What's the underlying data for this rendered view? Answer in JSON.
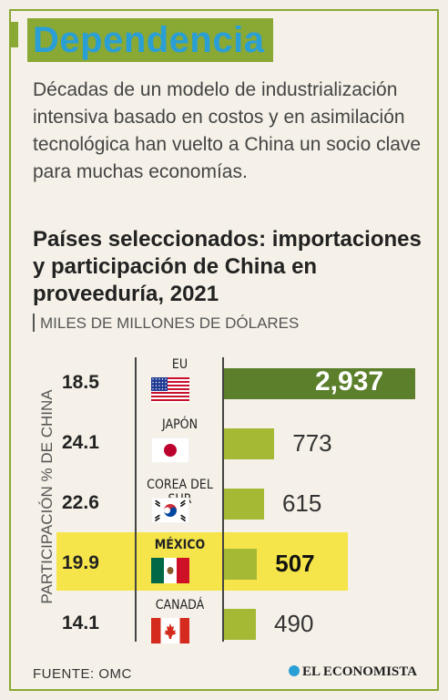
{
  "header": {
    "title": "Dependencia",
    "intro": "Décadas de un modelo de industrialización intensiva basado en costos y en asimilación tecnológica han vuelto a China un socio clave para muchas economías.",
    "subtitle": "Países seleccionados: importaciones y participación de China en proveeduría, 2021",
    "units": "MILES DE MILLONES DE DÓLARES"
  },
  "colors": {
    "accent_green": "#8aa834",
    "dark_green": "#5b7f2b",
    "bar_green": "#a6b934",
    "highlight": "#f6e54a",
    "title_blue": "#2a9fd6"
  },
  "chart_data": {
    "type": "bar",
    "orientation": "horizontal",
    "title": "Países seleccionados: importaciones y participación de China en proveeduría, 2021",
    "ylabel": "PARTICIPACIÓN % DE CHINA",
    "units": "MILES DE MILLONES DE DÓLARES",
    "categories": [
      "EU",
      "JAPÓN",
      "COREA DEL SUR",
      "MÉXICO",
      "CANADÁ"
    ],
    "series": [
      {
        "values": [
          2937,
          773,
          615,
          507,
          490
        ]
      }
    ],
    "value_labels": [
      "2,937",
      "773",
      "615",
      "507",
      "490"
    ],
    "china_share": [
      "18.5",
      "24.1",
      "22.6",
      "19.9",
      "14.1"
    ],
    "flags": [
      "us-flag-icon",
      "japan-flag-icon",
      "south-korea-flag-icon",
      "mexico-flag-icon",
      "canada-flag-icon"
    ],
    "highlighted": "MÉXICO",
    "xlim": [
      0,
      2937
    ]
  },
  "footer": {
    "source": "FUENTE:  OMC",
    "logo": "EL ECONOMISTA"
  }
}
